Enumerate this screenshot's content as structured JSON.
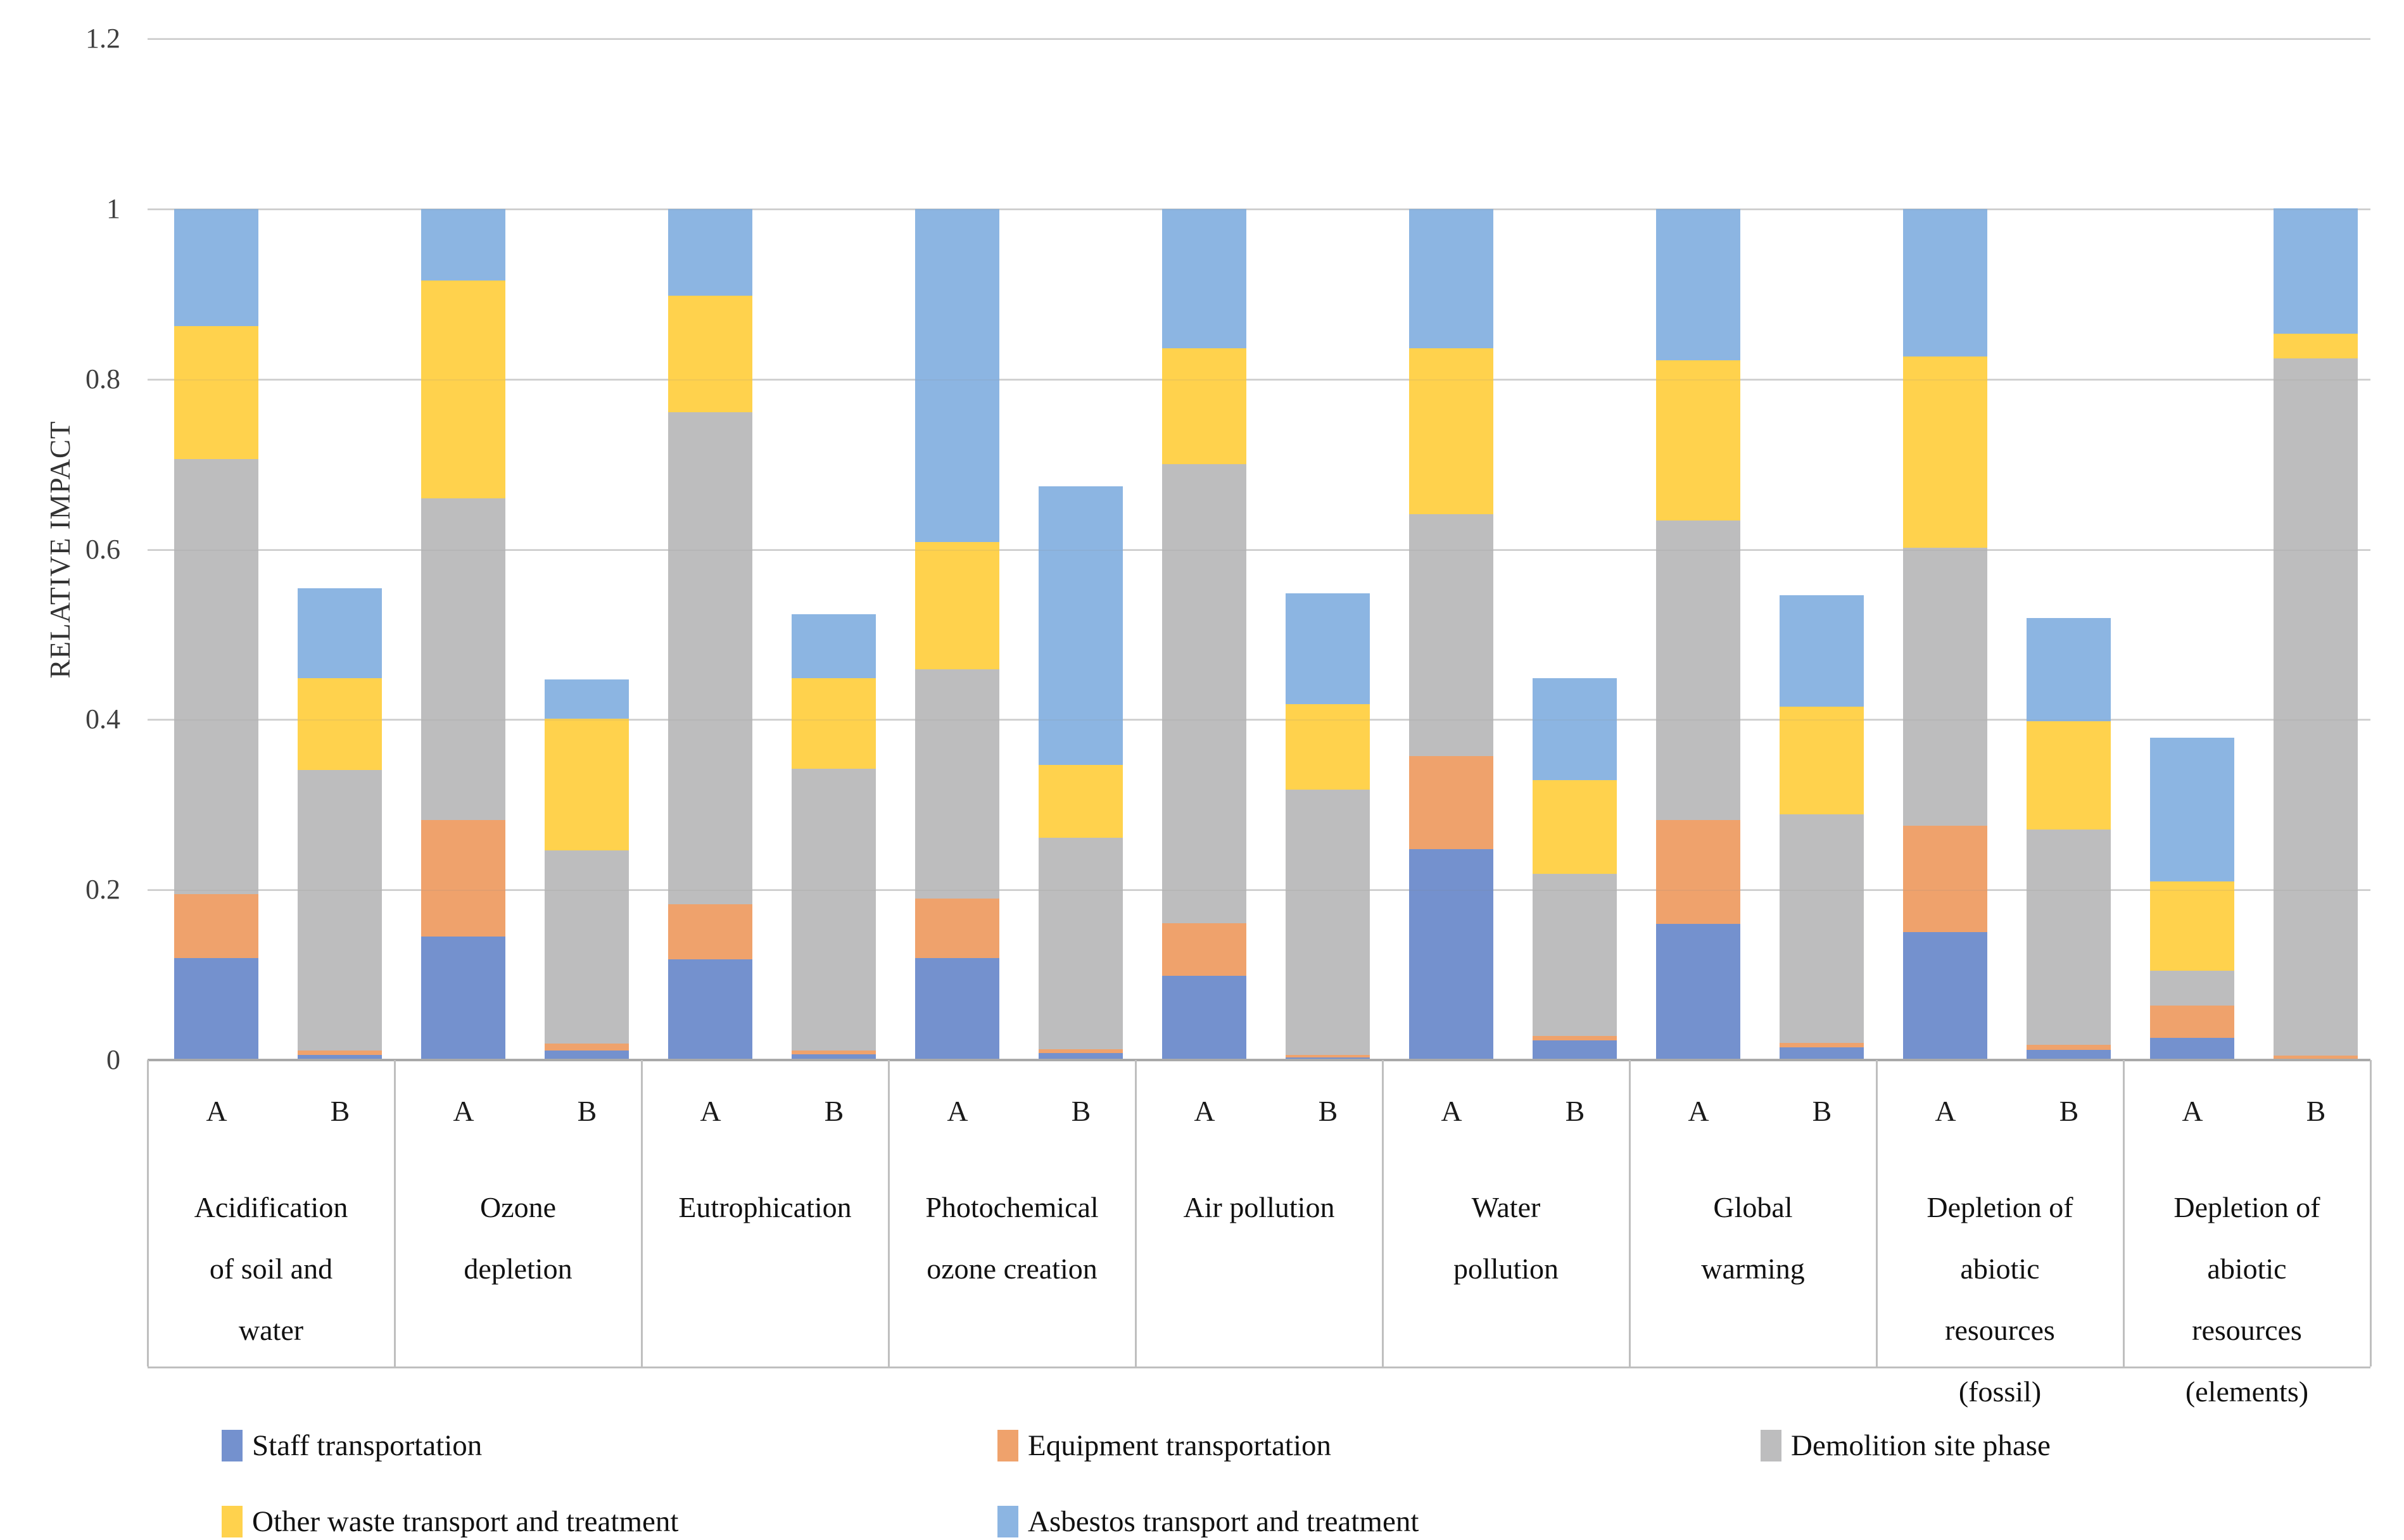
{
  "page": {
    "background": "#ffffff"
  },
  "y_axis": {
    "title": "RELATIVE IMPACT",
    "ticks": [
      {
        "value": 0,
        "label": "0"
      },
      {
        "value": 0.2,
        "label": "0.2"
      },
      {
        "value": 0.4,
        "label": "0.4"
      },
      {
        "value": 0.6,
        "label": "0.6"
      },
      {
        "value": 0.8,
        "label": "0.8"
      },
      {
        "value": 1,
        "label": "1"
      },
      {
        "value": 1.2,
        "label": "1.2"
      }
    ]
  },
  "colors": {
    "staff_blue": "#7491CE",
    "equipment_orange": "#EFA26C",
    "demolition_gray": "#BDBDBE",
    "other_yellow": "#FFD24D",
    "asbestos_lightblue": "#8CB5E2",
    "gridline": "#D9D9D9",
    "axis": "#A9A9A9",
    "frame": "#BFBFBF"
  },
  "chart_data": {
    "type": "bar",
    "stacked": true,
    "title": "",
    "xlabel": "",
    "ylabel": "RELATIVE IMPACT",
    "ylim": [
      0,
      1.2
    ],
    "ytick_step": 0.2,
    "grid": true,
    "legend_position": "bottom",
    "bar_labels": [
      "A",
      "B"
    ],
    "categories": [
      "Acidification of soil and water",
      "Ozone depletion",
      "Eutrophication",
      "Photochemical ozone creation",
      "Air pollution",
      "Water pollution",
      "Global warming",
      "Depletion of abiotic resources (fossil)",
      "Depletion of abiotic resources (elements)"
    ],
    "category_label_lines": [
      [
        "Acidification",
        "of soil and",
        "water"
      ],
      [
        "Ozone",
        "depletion"
      ],
      [
        "Eutrophication"
      ],
      [
        "Photochemical",
        "ozone creation"
      ],
      [
        "Air pollution"
      ],
      [
        "Water",
        "pollution"
      ],
      [
        "Global",
        "warming"
      ],
      [
        "Depletion of",
        "abiotic",
        "resources",
        "(fossil)"
      ],
      [
        "Depletion of",
        "abiotic",
        "resources",
        "(elements)"
      ]
    ],
    "series": [
      {
        "name": "Staff transportation",
        "color": "#7491CE",
        "A": [
          0.12,
          0.145,
          0.118,
          0.12,
          0.099,
          0.248,
          0.16,
          0.15,
          0.026
        ],
        "B": [
          0.006,
          0.011,
          0.007,
          0.008,
          0.003,
          0.023,
          0.015,
          0.012,
          0.001
        ]
      },
      {
        "name": "Equipment transportation",
        "color": "#EFA26C",
        "A": [
          0.075,
          0.137,
          0.065,
          0.07,
          0.062,
          0.109,
          0.122,
          0.125,
          0.038
        ],
        "B": [
          0.005,
          0.008,
          0.004,
          0.005,
          0.003,
          0.005,
          0.005,
          0.006,
          0.004
        ]
      },
      {
        "name": "Demolition site phase",
        "color": "#BDBDBE",
        "A": [
          0.511,
          0.378,
          0.578,
          0.269,
          0.539,
          0.284,
          0.352,
          0.327,
          0.041
        ],
        "B": [
          0.33,
          0.227,
          0.331,
          0.248,
          0.312,
          0.191,
          0.269,
          0.253,
          0.819
        ]
      },
      {
        "name": "Other waste transport and treatment",
        "color": "#FFD24D",
        "A": [
          0.156,
          0.256,
          0.137,
          0.15,
          0.136,
          0.195,
          0.188,
          0.225,
          0.105
        ],
        "B": [
          0.108,
          0.155,
          0.107,
          0.086,
          0.1,
          0.11,
          0.126,
          0.127,
          0.029
        ]
      },
      {
        "name": "Asbestos transport and treatment",
        "color": "#8CB5E2",
        "A": [
          0.138,
          0.084,
          0.102,
          0.391,
          0.164,
          0.164,
          0.178,
          0.173,
          0.169
        ],
        "B": [
          0.105,
          0.046,
          0.075,
          0.327,
          0.13,
          0.12,
          0.131,
          0.121,
          0.147
        ]
      }
    ],
    "totals_A": [
      1.0,
      1.0,
      1.0,
      1.0,
      1.0,
      1.0,
      1.0,
      1.0,
      0.379
    ],
    "totals_B": [
      0.554,
      0.447,
      0.524,
      0.674,
      0.548,
      0.449,
      0.546,
      0.519,
      1.0
    ]
  },
  "legend": {
    "items": [
      {
        "label": "Staff transportation",
        "color": "#7491CE",
        "row": 0,
        "x": 350
      },
      {
        "label": "Equipment transportation",
        "color": "#EFA26C",
        "row": 0,
        "x": 1575
      },
      {
        "label": "Demolition site phase",
        "color": "#BDBDBE",
        "row": 0,
        "x": 2780
      },
      {
        "label": "Other waste transport and treatment",
        "color": "#FFD24D",
        "row": 1,
        "x": 350
      },
      {
        "label": "Asbestos transport and treatment",
        "color": "#8CB5E2",
        "row": 1,
        "x": 1575
      }
    ]
  }
}
